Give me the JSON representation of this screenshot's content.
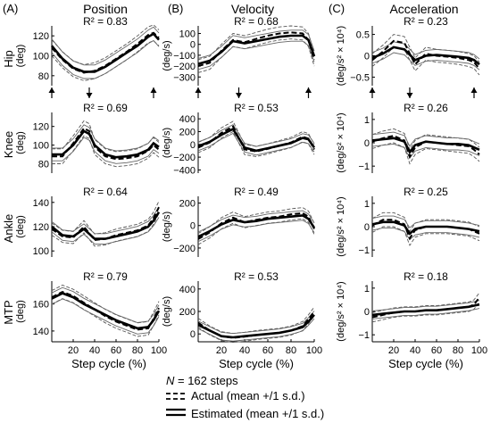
{
  "figure": {
    "panel_labels": [
      "(A)",
      "(B)",
      "(C)"
    ],
    "column_titles": [
      "Position",
      "Velocity",
      "Acceleration"
    ],
    "row_labels": [
      "Hip",
      "Knee",
      "Ankle",
      "MTP"
    ],
    "x_axis_label": "Step cycle (%)",
    "x_ticks": [
      20,
      40,
      60,
      80,
      100
    ],
    "legend": {
      "n_symbol": "N",
      "n_text": "= 162 steps",
      "actual_label": "Actual (mean +/1 s.d.)",
      "estimated_label": "Estimated (mean +/1 s.d.)"
    }
  },
  "chart_data": [
    {
      "type": "line",
      "column": "Position",
      "row": "Hip",
      "ylabel": "(deg)",
      "r2_text": "R² = 0.83",
      "ylim": [
        70,
        130
      ],
      "yticks": [
        80,
        100,
        120
      ],
      "x": [
        0,
        10,
        20,
        30,
        40,
        50,
        60,
        70,
        80,
        90,
        95,
        100
      ],
      "series": [
        {
          "name": "Estimated",
          "values": [
            110,
            97,
            88,
            84,
            84,
            89,
            96,
            103,
            110,
            119,
            122,
            116
          ]
        },
        {
          "name": "Actual",
          "values": [
            108,
            96,
            87,
            83,
            85,
            90,
            97,
            104,
            112,
            121,
            123,
            118
          ]
        }
      ],
      "sd": 8,
      "arrows_at": [
        0,
        35,
        95
      ]
    },
    {
      "type": "line",
      "column": "Velocity",
      "row": "Hip",
      "ylabel": "(deg/s)",
      "r2_text": "R² = 0.68",
      "ylim": [
        -380,
        170
      ],
      "yticks": [
        -300,
        -200,
        -100,
        0,
        100
      ],
      "x": [
        0,
        10,
        20,
        30,
        40,
        50,
        60,
        70,
        80,
        90,
        95,
        100
      ],
      "series": [
        {
          "name": "Estimated",
          "values": [
            -180,
            -150,
            -70,
            30,
            10,
            30,
            50,
            70,
            80,
            80,
            40,
            -110
          ]
        },
        {
          "name": "Actual",
          "values": [
            -200,
            -170,
            -60,
            40,
            20,
            50,
            80,
            100,
            110,
            100,
            40,
            -140
          ]
        }
      ],
      "sd": 60,
      "arrows_at": [
        0,
        35,
        95
      ]
    },
    {
      "type": "line",
      "column": "Acceleration",
      "row": "Hip",
      "ylabel": "(deg/s² × 10⁴)",
      "r2_text": "R² = 0.23",
      "ylim": [
        -0.7,
        0.7
      ],
      "yticks": [
        -0.5,
        0,
        0.5
      ],
      "x": [
        0,
        10,
        20,
        30,
        40,
        50,
        60,
        70,
        80,
        90,
        95,
        100
      ],
      "series": [
        {
          "name": "Estimated",
          "values": [
            -0.05,
            0.05,
            0.2,
            0.15,
            -0.1,
            0.0,
            0.02,
            0.0,
            -0.02,
            -0.05,
            -0.1,
            -0.2
          ]
        },
        {
          "name": "Actual",
          "values": [
            -0.1,
            0.1,
            0.35,
            0.3,
            -0.2,
            0.05,
            0.0,
            -0.02,
            -0.05,
            -0.1,
            -0.15,
            -0.3
          ]
        }
      ],
      "sd": 0.15,
      "arrows_at": [
        0,
        35,
        95
      ]
    },
    {
      "type": "line",
      "column": "Position",
      "row": "Knee",
      "ylabel": "(deg)",
      "r2_text": "R² = 0.69",
      "ylim": [
        70,
        135
      ],
      "yticks": [
        80,
        100,
        120
      ],
      "x": [
        0,
        10,
        20,
        30,
        35,
        40,
        50,
        60,
        70,
        80,
        90,
        95,
        100
      ],
      "series": [
        {
          "name": "Estimated",
          "values": [
            90,
            90,
            100,
            115,
            112,
            100,
            90,
            87,
            88,
            90,
            95,
            102,
            98
          ]
        },
        {
          "name": "Actual",
          "values": [
            88,
            88,
            102,
            118,
            115,
            98,
            88,
            85,
            86,
            88,
            94,
            100,
            95
          ]
        }
      ],
      "sd": 8
    },
    {
      "type": "line",
      "column": "Velocity",
      "row": "Knee",
      "ylabel": "(deg/s)",
      "r2_text": "R² = 0.53",
      "ylim": [
        -450,
        500
      ],
      "yticks": [
        -400,
        -200,
        0,
        200,
        400
      ],
      "x": [
        0,
        10,
        20,
        30,
        40,
        50,
        60,
        70,
        80,
        90,
        95,
        100
      ],
      "series": [
        {
          "name": "Estimated",
          "values": [
            -30,
            40,
            150,
            240,
            -50,
            -100,
            -60,
            -20,
            20,
            100,
            80,
            -50
          ]
        },
        {
          "name": "Actual",
          "values": [
            -50,
            30,
            180,
            280,
            -80,
            -110,
            -70,
            -20,
            30,
            120,
            90,
            -80
          ]
        }
      ],
      "sd": 80
    },
    {
      "type": "line",
      "column": "Acceleration",
      "row": "Knee",
      "ylabel": "(deg/s² × 10⁴)",
      "r2_text": "R² = 0.26",
      "ylim": [
        -1.3,
        1.3
      ],
      "yticks": [
        -1,
        0,
        1
      ],
      "x": [
        0,
        10,
        20,
        30,
        35,
        40,
        50,
        60,
        70,
        80,
        90,
        95,
        100
      ],
      "series": [
        {
          "name": "Estimated",
          "values": [
            0.1,
            0.15,
            0.2,
            0.05,
            -0.4,
            -0.1,
            0.05,
            0.0,
            -0.05,
            -0.05,
            -0.1,
            -0.2,
            -0.3
          ]
        },
        {
          "name": "Actual",
          "values": [
            0.05,
            0.2,
            0.3,
            0.1,
            -0.6,
            -0.2,
            0.05,
            0.0,
            -0.05,
            -0.1,
            -0.15,
            -0.3,
            -0.5
          ]
        }
      ],
      "sd": 0.3
    },
    {
      "type": "line",
      "column": "Position",
      "row": "Ankle",
      "ylabel": "(deg)",
      "r2_text": "R² = 0.64",
      "ylim": [
        95,
        145
      ],
      "yticks": [
        100,
        120,
        140
      ],
      "x": [
        0,
        10,
        20,
        30,
        40,
        50,
        60,
        70,
        80,
        90,
        95,
        100
      ],
      "series": [
        {
          "name": "Estimated",
          "values": [
            120,
            113,
            112,
            118,
            110,
            110,
            112,
            114,
            116,
            120,
            125,
            132
          ]
        },
        {
          "name": "Actual",
          "values": [
            118,
            112,
            111,
            120,
            109,
            110,
            113,
            115,
            117,
            121,
            127,
            136
          ]
        }
      ],
      "sd": 5
    },
    {
      "type": "line",
      "column": "Velocity",
      "row": "Ankle",
      "ylabel": "(deg/s)",
      "r2_text": "R² = 0.49",
      "ylim": [
        -280,
        260
      ],
      "yticks": [
        -200,
        0,
        200
      ],
      "x": [
        0,
        10,
        20,
        30,
        40,
        50,
        60,
        70,
        80,
        90,
        95,
        100
      ],
      "series": [
        {
          "name": "Estimated",
          "values": [
            -100,
            -50,
            10,
            50,
            30,
            40,
            60,
            70,
            80,
            90,
            60,
            -20
          ]
        },
        {
          "name": "Actual",
          "values": [
            -120,
            -60,
            20,
            70,
            30,
            50,
            70,
            80,
            100,
            110,
            80,
            -30
          ]
        }
      ],
      "sd": 50
    },
    {
      "type": "line",
      "column": "Acceleration",
      "row": "Ankle",
      "ylabel": "(deg/s² × 10⁴)",
      "r2_text": "R² = 0.25",
      "ylim": [
        -1.3,
        1.3
      ],
      "yticks": [
        -1,
        0,
        1
      ],
      "x": [
        0,
        10,
        20,
        30,
        35,
        40,
        50,
        60,
        70,
        80,
        90,
        95,
        100
      ],
      "series": [
        {
          "name": "Estimated",
          "values": [
            0.1,
            0.2,
            0.2,
            0.05,
            -0.3,
            -0.1,
            0.0,
            0.0,
            0.0,
            -0.05,
            -0.1,
            -0.15,
            -0.2
          ]
        },
        {
          "name": "Actual",
          "values": [
            0.05,
            0.3,
            0.3,
            0.1,
            -0.5,
            -0.15,
            0.0,
            0.0,
            0.0,
            -0.05,
            -0.1,
            -0.2,
            -0.3
          ]
        }
      ],
      "sd": 0.3
    },
    {
      "type": "line",
      "column": "Position",
      "row": "MTP",
      "ylabel": "(deg)",
      "r2_text": "R² = 0.79",
      "ylim": [
        132,
        177
      ],
      "yticks": [
        140,
        160
      ],
      "x": [
        0,
        10,
        20,
        30,
        40,
        50,
        60,
        70,
        80,
        90,
        95,
        100
      ],
      "series": [
        {
          "name": "Estimated",
          "values": [
            164,
            168,
            165,
            160,
            156,
            152,
            148,
            145,
            142,
            143,
            148,
            155
          ]
        },
        {
          "name": "Actual",
          "values": [
            165,
            169,
            166,
            161,
            156,
            151,
            147,
            144,
            141,
            142,
            149,
            157
          ]
        }
      ],
      "sd": 5
    },
    {
      "type": "line",
      "column": "Velocity",
      "row": "MTP",
      "ylabel": "(deg/s)",
      "r2_text": "R² = 0.53",
      "ylim": [
        -70,
        470
      ],
      "yticks": [
        0,
        200,
        400
      ],
      "x": [
        0,
        10,
        20,
        30,
        40,
        50,
        60,
        70,
        80,
        90,
        95,
        100
      ],
      "series": [
        {
          "name": "Estimated",
          "values": [
            80,
            30,
            -20,
            -30,
            -20,
            -10,
            0,
            10,
            30,
            60,
            110,
            170
          ]
        },
        {
          "name": "Actual",
          "values": [
            100,
            30,
            -20,
            -35,
            -25,
            -10,
            0,
            10,
            30,
            70,
            130,
            200
          ]
        }
      ],
      "sd": 40
    },
    {
      "type": "line",
      "column": "Acceleration",
      "row": "MTP",
      "ylabel": "(deg/s² × 10⁴)",
      "r2_text": "R² = 0.18",
      "ylim": [
        -1.3,
        1.3
      ],
      "yticks": [
        -1,
        0,
        1
      ],
      "x": [
        0,
        10,
        20,
        30,
        40,
        50,
        60,
        70,
        80,
        90,
        95,
        100
      ],
      "series": [
        {
          "name": "Estimated",
          "values": [
            -0.15,
            -0.1,
            -0.05,
            0.0,
            0.0,
            0.05,
            0.05,
            0.1,
            0.15,
            0.2,
            0.25,
            0.3
          ]
        },
        {
          "name": "Actual",
          "values": [
            -0.25,
            -0.15,
            -0.05,
            0.0,
            0.0,
            0.05,
            0.05,
            0.1,
            0.15,
            0.2,
            0.3,
            0.6
          ]
        }
      ],
      "sd": 0.2
    }
  ]
}
